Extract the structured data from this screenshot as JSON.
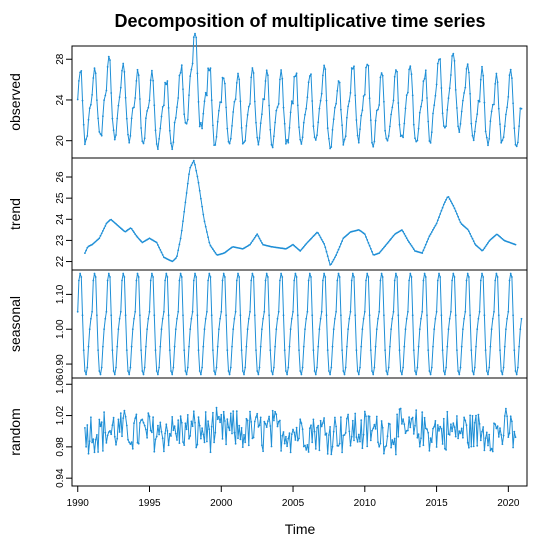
{
  "chart_data": {
    "type": "line",
    "title": "Decomposition of multiplicative time series",
    "xlabel": "Time",
    "x_ticks": [
      1990,
      1995,
      2000,
      2005,
      2010,
      2015,
      2020
    ],
    "xlim": [
      1989.6,
      2021.3
    ],
    "start": 1990.0,
    "frequency": 12,
    "color": "#1f8fd6",
    "panels": [
      {
        "name": "observed",
        "ylabel": "observed",
        "ylim": [
          18.3,
          29.3
        ],
        "y_ticks": [
          20,
          24,
          28
        ],
        "series": {
          "name": "observed",
          "kind": "observed",
          "start": 1990.0,
          "end": 2020.92,
          "trend_anchors": [
            [
              1990,
              22.7
            ],
            [
              1991,
              23.0
            ],
            [
              1992,
              23.9
            ],
            [
              1993,
              23.5
            ],
            [
              1994,
              22.9
            ],
            [
              1995,
              23.0
            ],
            [
              1996,
              22.2
            ],
            [
              1997,
              22.6
            ],
            [
              1998,
              26.5
            ],
            [
              1999,
              23.4
            ],
            [
              2000,
              22.5
            ],
            [
              2001,
              22.7
            ],
            [
              2002,
              22.8
            ],
            [
              2003,
              23.0
            ],
            [
              2004,
              22.7
            ],
            [
              2005,
              22.7
            ],
            [
              2006,
              22.8
            ],
            [
              2007,
              23.3
            ],
            [
              2008,
              22.0
            ],
            [
              2009,
              23.3
            ],
            [
              2010,
              23.5
            ],
            [
              2011,
              22.5
            ],
            [
              2012,
              23.0
            ],
            [
              2013,
              23.5
            ],
            [
              2014,
              22.5
            ],
            [
              2015,
              23.8
            ],
            [
              2016,
              24.8
            ],
            [
              2017,
              23.5
            ],
            [
              2018,
              23.0
            ],
            [
              2019,
              22.5
            ],
            [
              2020,
              23.0
            ],
            [
              2021,
              22.8
            ]
          ],
          "amplitude": 0.14
        }
      },
      {
        "name": "trend",
        "ylabel": "trend",
        "ylim": [
          21.6,
          26.9
        ],
        "y_ticks": [
          22,
          23,
          24,
          25,
          26
        ],
        "series": {
          "name": "trend",
          "kind": "trend",
          "start": 1990.5,
          "end": 2020.5,
          "points": [
            [
              1990.5,
              22.4
            ],
            [
              1990.7,
              22.7
            ],
            [
              1991.0,
              22.8
            ],
            [
              1991.5,
              23.1
            ],
            [
              1992.0,
              23.8
            ],
            [
              1992.3,
              24.0
            ],
            [
              1992.8,
              23.7
            ],
            [
              1993.3,
              23.4
            ],
            [
              1993.7,
              23.6
            ],
            [
              1994.1,
              23.2
            ],
            [
              1994.5,
              22.9
            ],
            [
              1995.0,
              23.1
            ],
            [
              1995.5,
              22.9
            ],
            [
              1996.0,
              22.2
            ],
            [
              1996.6,
              22.0
            ],
            [
              1996.9,
              22.2
            ],
            [
              1997.2,
              23.2
            ],
            [
              1997.5,
              24.8
            ],
            [
              1997.8,
              26.4
            ],
            [
              1998.1,
              26.8
            ],
            [
              1998.4,
              25.8
            ],
            [
              1998.8,
              24.0
            ],
            [
              1999.2,
              22.8
            ],
            [
              1999.7,
              22.3
            ],
            [
              2000.2,
              22.4
            ],
            [
              2000.8,
              22.7
            ],
            [
              2001.5,
              22.6
            ],
            [
              2002.0,
              22.8
            ],
            [
              2002.5,
              23.3
            ],
            [
              2002.9,
              22.8
            ],
            [
              2003.5,
              22.7
            ],
            [
              2004.5,
              22.6
            ],
            [
              2005.0,
              22.8
            ],
            [
              2005.5,
              22.5
            ],
            [
              2006.0,
              22.9
            ],
            [
              2006.7,
              23.4
            ],
            [
              2007.2,
              22.8
            ],
            [
              2007.6,
              21.8
            ],
            [
              2008.0,
              22.3
            ],
            [
              2008.5,
              23.1
            ],
            [
              2009.0,
              23.4
            ],
            [
              2009.6,
              23.5
            ],
            [
              2010.0,
              23.3
            ],
            [
              2010.6,
              22.3
            ],
            [
              2011.0,
              22.4
            ],
            [
              2011.5,
              22.8
            ],
            [
              2012.1,
              23.3
            ],
            [
              2012.6,
              23.5
            ],
            [
              2013.0,
              23.0
            ],
            [
              2013.5,
              22.5
            ],
            [
              2014.0,
              22.4
            ],
            [
              2014.5,
              23.2
            ],
            [
              2015.0,
              23.8
            ],
            [
              2015.5,
              24.7
            ],
            [
              2015.8,
              25.1
            ],
            [
              2016.2,
              24.6
            ],
            [
              2016.7,
              23.8
            ],
            [
              2017.2,
              23.5
            ],
            [
              2017.7,
              22.8
            ],
            [
              2018.2,
              22.5
            ],
            [
              2018.7,
              23.0
            ],
            [
              2019.2,
              23.3
            ],
            [
              2019.7,
              23.0
            ],
            [
              2020.5,
              22.8
            ]
          ]
        }
      },
      {
        "name": "seasonal",
        "ylabel": "seasonal",
        "ylim": [
          0.86,
          1.17
        ],
        "y_ticks": [
          0.9,
          1.0,
          1.1
        ],
        "y_tick_labels": [
          "0.90",
          "1.00",
          "1.10"
        ],
        "series": {
          "name": "seasonal",
          "kind": "seasonal",
          "start": 1990.0,
          "end": 2020.92,
          "pattern": [
            1.05,
            1.14,
            1.16,
            1.15,
            1.04,
            0.94,
            0.88,
            0.87,
            0.89,
            0.95,
            1.0,
            1.03
          ]
        }
      },
      {
        "name": "random",
        "ylabel": "random",
        "ylim": [
          0.93,
          1.068
        ],
        "y_ticks": [
          0.94,
          0.98,
          1.02,
          1.06
        ],
        "y_tick_labels": [
          "0.94",
          "0.98",
          "1.02",
          "1.06"
        ],
        "series": {
          "name": "random",
          "kind": "random",
          "start": 1990.5,
          "end": 2020.5,
          "center": 1.0,
          "spread": 0.025
        }
      }
    ]
  }
}
